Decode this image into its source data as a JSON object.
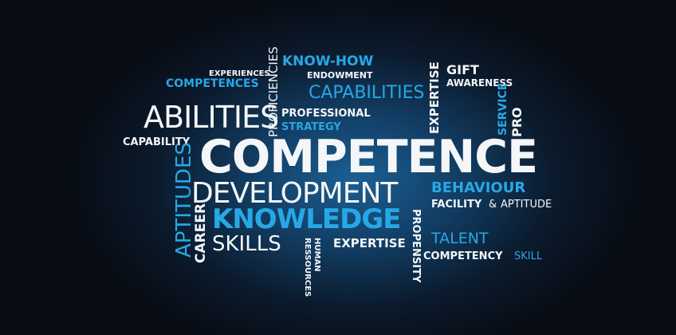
{
  "words": {
    "competence": "COMPETENCE",
    "development": "DEVELOPMENT",
    "knowledge": "KNOWLEDGE",
    "abilities": "ABILITIES",
    "skills": "SKILLS",
    "capabilities": "CAPABILITIES",
    "know_how": "KNOW-HOW",
    "endowment": "ENDOWMENT",
    "experiences": "EXPERIENCES",
    "competences": "COMPETENCES",
    "proficiencies": "PROFICIENCIES",
    "professional": "PROFESSIONAL",
    "strategy": "STRATEGY",
    "capability": "CAPABILITY",
    "aptitudes": "APTITUDES",
    "career": "CAREER",
    "gift": "GIFT",
    "awareness": "AWARENESS",
    "expertise_vertical": "EXPERTISE",
    "service": "SERVICE",
    "pro": "PRO",
    "behaviour": "BEHAVIOUR",
    "facility": "FACILITY",
    "amp": "&",
    "aptitude": "APTITUDE",
    "propensity": "PROPENSITY",
    "talent": "TALENT",
    "competency": "COMPETENCY",
    "skill": "SKILL",
    "expertise": "EXPERTISE",
    "human": "HUMAN",
    "ressources": "RESSOURCES"
  },
  "colors": {
    "white": "#f4f6f8",
    "blue": "#27a8e6",
    "background": "#0b0f18",
    "glow": "#1b5f93"
  }
}
